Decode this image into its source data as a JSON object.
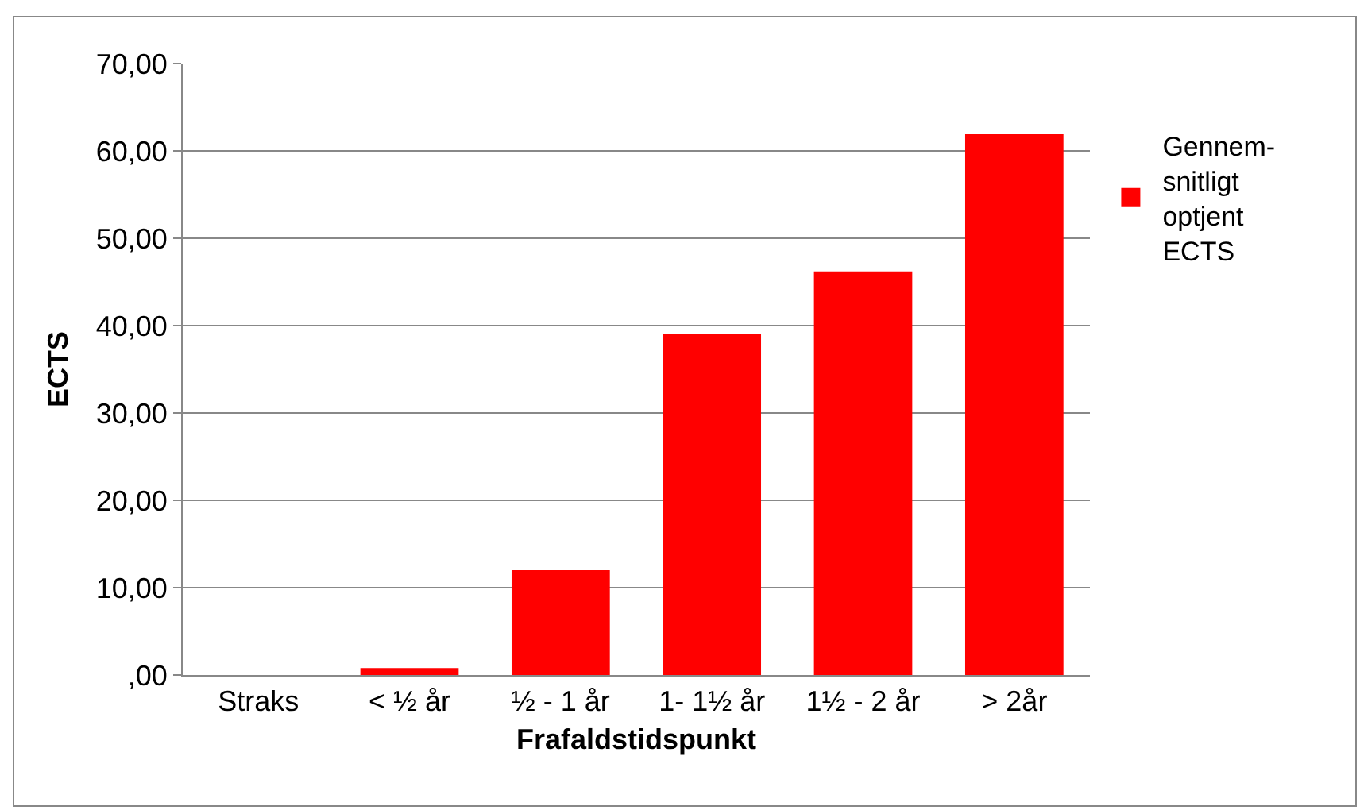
{
  "chart_data": {
    "type": "bar",
    "xlabel": "Frafaldstidspunkt",
    "ylabel": "ECTS",
    "categories": [
      "Straks",
      "< ½ år",
      "½ - 1 år",
      "1- 1½ år",
      "1½ - 2 år",
      "> 2år"
    ],
    "series": [
      {
        "name": "Gennem-\nsnitligt\noptjent\nECTS",
        "color": "#ff0000",
        "values": [
          0,
          0.8,
          12.0,
          39.0,
          46.2,
          61.9
        ]
      }
    ],
    "ylim": [
      0,
      70
    ],
    "yticks": [
      {
        "value": 0,
        "label": ",00"
      },
      {
        "value": 10,
        "label": "10,00"
      },
      {
        "value": 20,
        "label": "20,00"
      },
      {
        "value": 30,
        "label": "30,00"
      },
      {
        "value": 40,
        "label": "40,00"
      },
      {
        "value": 50,
        "label": "50,00"
      },
      {
        "value": 60,
        "label": "60,00"
      },
      {
        "value": 70,
        "label": "70,00"
      }
    ],
    "grid": "y",
    "legend": "right"
  }
}
